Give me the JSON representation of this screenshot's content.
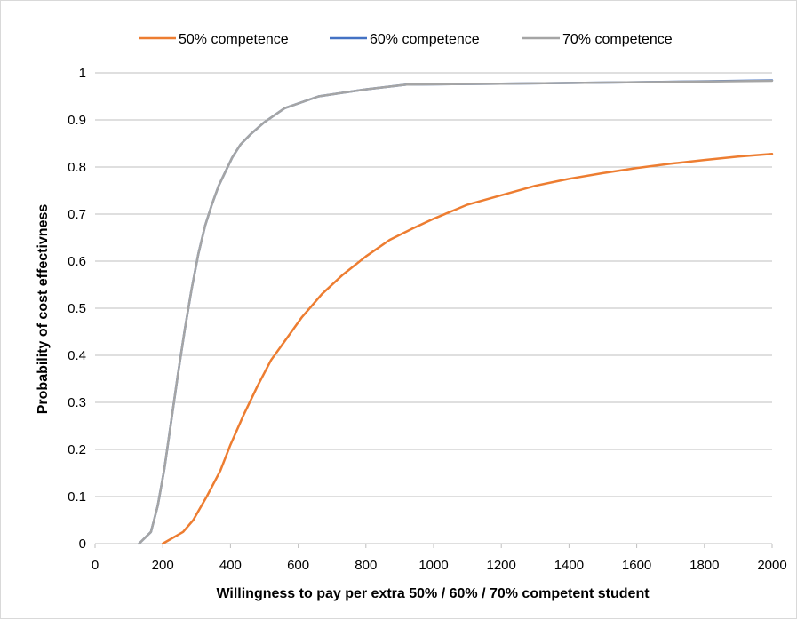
{
  "chart_data": {
    "type": "line",
    "title": "",
    "xlabel": "Willingness to pay per extra 50% / 60% / 70% competent student",
    "ylabel": "Probability of cost effectivness",
    "xlim": [
      0,
      2000
    ],
    "ylim": [
      0,
      1
    ],
    "x_ticks": [
      "0",
      "200",
      "400",
      "600",
      "800",
      "1000",
      "1200",
      "1400",
      "1600",
      "1800",
      "2000"
    ],
    "y_ticks": [
      "0",
      "0.1",
      "0.2",
      "0.3",
      "0.4",
      "0.5",
      "0.6",
      "0.7",
      "0.8",
      "0.9",
      "1"
    ],
    "grid": "horizontal",
    "legend_position": "top-center",
    "series": [
      {
        "name": "50% competence",
        "color": "#ed7d31",
        "x": [
          200,
          260,
          290,
          330,
          370,
          400,
          440,
          480,
          520,
          560,
          610,
          670,
          730,
          800,
          870,
          940,
          1000,
          1100,
          1200,
          1300,
          1400,
          1500,
          1600,
          1700,
          1800,
          1900,
          2000
        ],
        "y": [
          0,
          0.025,
          0.05,
          0.1,
          0.155,
          0.21,
          0.275,
          0.335,
          0.39,
          0.43,
          0.48,
          0.53,
          0.57,
          0.61,
          0.645,
          0.67,
          0.69,
          0.72,
          0.74,
          0.76,
          0.775,
          0.787,
          0.798,
          0.807,
          0.815,
          0.822,
          0.828
        ]
      },
      {
        "name": "60% competence",
        "color": "#4472c4",
        "x": [
          130,
          165,
          185,
          205,
          225,
          245,
          265,
          285,
          305,
          325,
          345,
          365,
          385,
          405,
          430,
          460,
          500,
          560,
          660,
          800,
          920,
          1200,
          1600,
          2000
        ],
        "y": [
          0,
          0.025,
          0.08,
          0.16,
          0.26,
          0.36,
          0.455,
          0.54,
          0.615,
          0.675,
          0.72,
          0.76,
          0.79,
          0.82,
          0.848,
          0.87,
          0.895,
          0.925,
          0.95,
          0.965,
          0.975,
          0.977,
          0.98,
          0.984
        ]
      },
      {
        "name": "70% competence",
        "color": "#a5a5a5",
        "x": [
          130,
          165,
          185,
          205,
          225,
          245,
          265,
          285,
          305,
          325,
          345,
          365,
          385,
          405,
          430,
          460,
          500,
          560,
          660,
          800,
          920,
          1200,
          1600,
          2000
        ],
        "y": [
          0,
          0.025,
          0.08,
          0.16,
          0.26,
          0.36,
          0.455,
          0.54,
          0.615,
          0.675,
          0.72,
          0.76,
          0.79,
          0.82,
          0.848,
          0.87,
          0.895,
          0.925,
          0.95,
          0.965,
          0.975,
          0.977,
          0.98,
          0.983
        ]
      }
    ]
  }
}
